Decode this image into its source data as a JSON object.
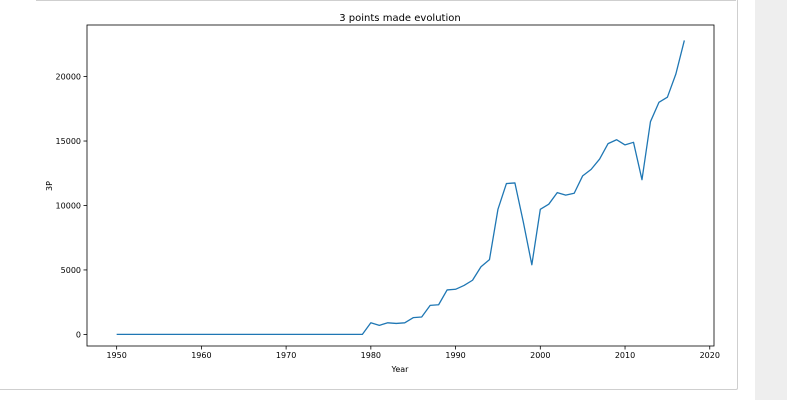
{
  "chart_data": {
    "type": "line",
    "title": "3 points made evolution",
    "xlabel": "Year",
    "ylabel": "3P",
    "xlim": [
      1946.5,
      2020.5
    ],
    "ylim": [
      -900,
      24000
    ],
    "xticks": [
      1950,
      1960,
      1970,
      1980,
      1990,
      2000,
      2010,
      2020
    ],
    "yticks": [
      0,
      5000,
      10000,
      15000,
      20000
    ],
    "grid": false,
    "color": "#1f77b4",
    "series": [
      {
        "x": [
          1950,
          1951,
          1952,
          1953,
          1954,
          1955,
          1956,
          1957,
          1958,
          1959,
          1960,
          1961,
          1962,
          1963,
          1964,
          1965,
          1966,
          1967,
          1968,
          1969,
          1970,
          1971,
          1972,
          1973,
          1974,
          1975,
          1976,
          1977,
          1978,
          1979,
          1980,
          1981,
          1982,
          1983,
          1984,
          1985,
          1986,
          1987,
          1988,
          1989,
          1990,
          1991,
          1992,
          1993,
          1994,
          1995,
          1996,
          1997,
          1998,
          1999,
          2000,
          2001,
          2002,
          2003,
          2004,
          2005,
          2006,
          2007,
          2008,
          2009,
          2010,
          2011,
          2012,
          2013,
          2014,
          2015,
          2016,
          2017
        ],
        "values": [
          0,
          0,
          0,
          0,
          0,
          0,
          0,
          0,
          0,
          0,
          0,
          0,
          0,
          0,
          0,
          0,
          0,
          0,
          0,
          0,
          0,
          0,
          0,
          0,
          0,
          0,
          0,
          0,
          0,
          0,
          900,
          700,
          900,
          850,
          900,
          1300,
          1350,
          2250,
          2300,
          3450,
          3500,
          3800,
          4200,
          5250,
          5800,
          9700,
          11700,
          11750,
          8700,
          5400,
          9700,
          10100,
          11000,
          10800,
          10950,
          12300,
          12800,
          13600,
          14800,
          15100,
          14700,
          14900,
          12000,
          16500,
          18000,
          18400,
          20200,
          22800
        ]
      }
    ]
  }
}
